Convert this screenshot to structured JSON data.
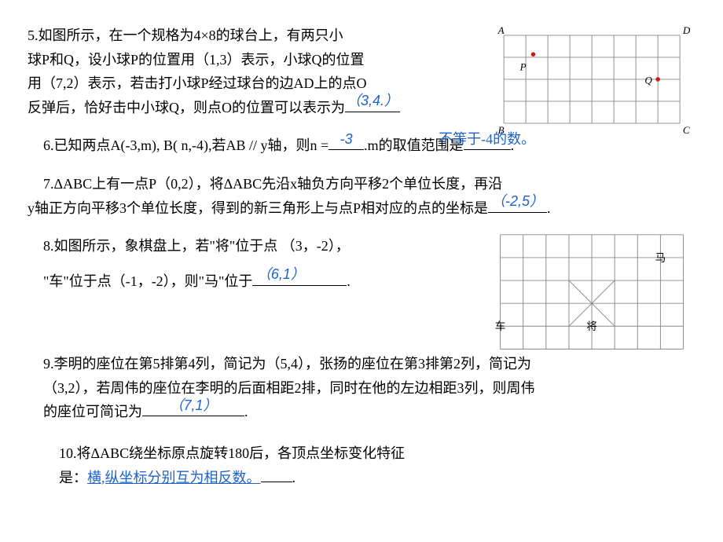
{
  "problems": {
    "p5": {
      "text_l1": "5.如图所示，在一个规格为4×8的球台上，有两只小",
      "text_l2": "球P和Q，设小球P的位置用（1,3）表示，小球Q的位置",
      "text_l3": "用（7,2）表示，若击打小球P经过球台的边AD上的点O",
      "text_l4a": "反弹后，恰好击中小球Q，则点O的位置可以表示为",
      "answer": "（3,4.）",
      "figure": {
        "cols": 8,
        "rows": 4,
        "cell": 30,
        "labels": {
          "A": [
            0,
            0,
            -8,
            -2
          ],
          "D": [
            8,
            0,
            4,
            -2
          ],
          "B": [
            0,
            4,
            -8,
            14
          ],
          "C": [
            8,
            4,
            4,
            14
          ]
        },
        "P_label": "P",
        "Q_label": "Q",
        "P_pos": [
          1,
          1
        ],
        "Q_pos": [
          7,
          2
        ],
        "dot_color": "#c02020",
        "grid_color": "#8a8a8a",
        "label_fontsize": 14,
        "italic": true
      }
    },
    "p6": {
      "text_a": "6.已知两点A(-3,m), B( n,-4),若AB // y轴，则n =",
      "answer1": "-3",
      "text_b": ".m的取值范围是",
      "answer2": "不等于-4的数。",
      "text_c": "."
    },
    "p7": {
      "text_l1": "7.ΔABC上有一点P（0,2），将ΔABC先沿x轴负方向平移2个单位长度，再沿",
      "text_l2a": "y轴正方向平移3个单位长度，得到的新三角形上与点P相对应的点的坐标是",
      "answer": "（-2,5）",
      "text_l2b": "."
    },
    "p8": {
      "text_l1": "8.如图所示，象棋盘上，若\"将\"位于点 （3，-2），",
      "text_l2a": "\"车\"位于点（-1，-2），则\"马\"位于",
      "answer": "（6,1）",
      "text_l2b": ".",
      "figure": {
        "cols": 8,
        "rows": 5,
        "cell": 30,
        "grid_color": "#8a8a8a",
        "pieces": {
          "ma": {
            "label": "马",
            "col": 7,
            "row": 1
          },
          "che": {
            "label": "车",
            "col": 0,
            "row": 4
          },
          "jiang": {
            "label": "将",
            "col": 4,
            "row": 4
          }
        },
        "palace": {
          "c0": 3,
          "c1": 5,
          "r0": 2,
          "r1": 4
        },
        "label_fontsize": 14
      }
    },
    "p9": {
      "text_l1": "9.李明的座位在第5排第4列，简记为（5,4），张扬的座位在第3排第2列，简记为",
      "text_l2": "（3,2），若周伟的座位在李明的后面相距2排，同时在他的左边相距3列，则周伟",
      "text_l3a": "的座位可简记为",
      "answer": "（7,1）",
      "text_l3b": "."
    },
    "p10": {
      "text_l1": "10.将ΔABC绕坐标原点旋转180后，各顶点坐标变化特征",
      "text_l2a": "是：",
      "answer": "横,纵坐标分别互为相反数。",
      "text_l2b": "."
    }
  },
  "colors": {
    "answer_color": "#1d63c9",
    "text_color": "#000000",
    "background": "#ffffff"
  }
}
